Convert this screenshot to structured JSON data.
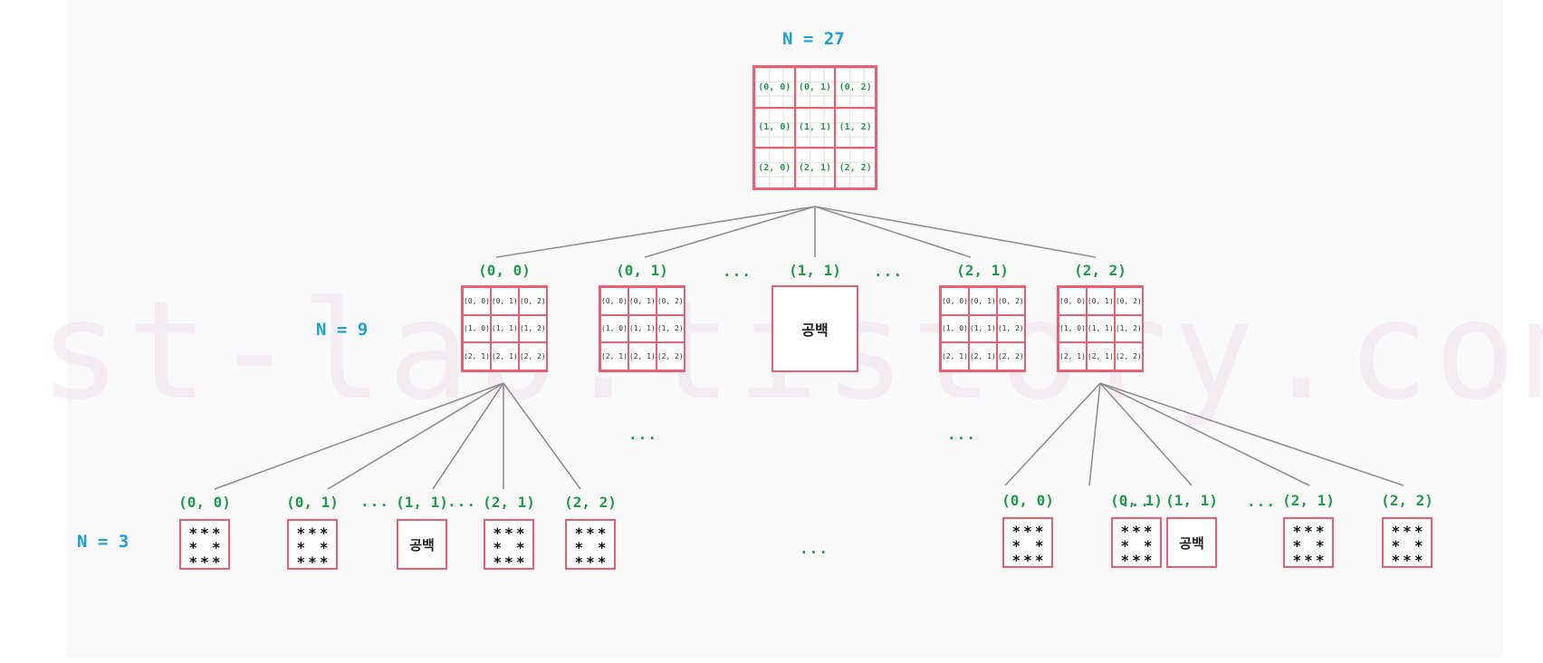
{
  "levels": {
    "top": "N = 27",
    "middle": "N = 9",
    "bottom": "N = 3"
  },
  "top_grid": [
    [
      "(0, 0)",
      "(0, 1)",
      "(0, 2)"
    ],
    [
      "(1, 0)",
      "(1, 1)",
      "(1, 2)"
    ],
    [
      "(2, 0)",
      "(2, 1)",
      "(2, 2)"
    ]
  ],
  "middle_nodes": [
    {
      "label": "(0, 0)",
      "type": "grid"
    },
    {
      "label": "(0, 1)",
      "type": "grid"
    },
    {
      "label": "(1, 1)",
      "type": "blank",
      "text": "공백"
    },
    {
      "label": "(2, 1)",
      "type": "grid"
    },
    {
      "label": "(2, 2)",
      "type": "grid"
    }
  ],
  "middle_grid_cells": [
    [
      "(0, 0)",
      "(0, 1)",
      "(0, 2)"
    ],
    [
      "(1, 0)",
      "(1, 1)",
      "(1, 2)"
    ],
    [
      "(2, 1)",
      "(2, 1)",
      "(2, 2)"
    ]
  ],
  "bottom_left": [
    {
      "label": "(0, 0)",
      "type": "stars"
    },
    {
      "label": "(0, 1)",
      "type": "stars"
    },
    {
      "label": "(1, 1)",
      "type": "blank",
      "text": "공백"
    },
    {
      "label": "(2, 1)",
      "type": "stars"
    },
    {
      "label": "(2, 2)",
      "type": "stars"
    }
  ],
  "bottom_right": [
    {
      "label": "(0, 0)",
      "type": "stars"
    },
    {
      "label": "(0, 1)",
      "type": "stars"
    },
    {
      "label": "(1, 1)",
      "type": "blank",
      "text": "공백"
    },
    {
      "label": "(2, 1)",
      "type": "stars"
    },
    {
      "label": "(2, 2)",
      "type": "stars"
    }
  ],
  "star_pattern": [
    "*",
    "*",
    "*",
    "*",
    "",
    "*",
    "*",
    "*",
    "*"
  ],
  "ellipsis": "...",
  "watermark": "st-lab.tistory.com",
  "colors": {
    "edge": "#8f8f8f",
    "box_border": "#ea5d72",
    "node_label": "#1f9a4c",
    "level_label": "#1a9fd9"
  }
}
